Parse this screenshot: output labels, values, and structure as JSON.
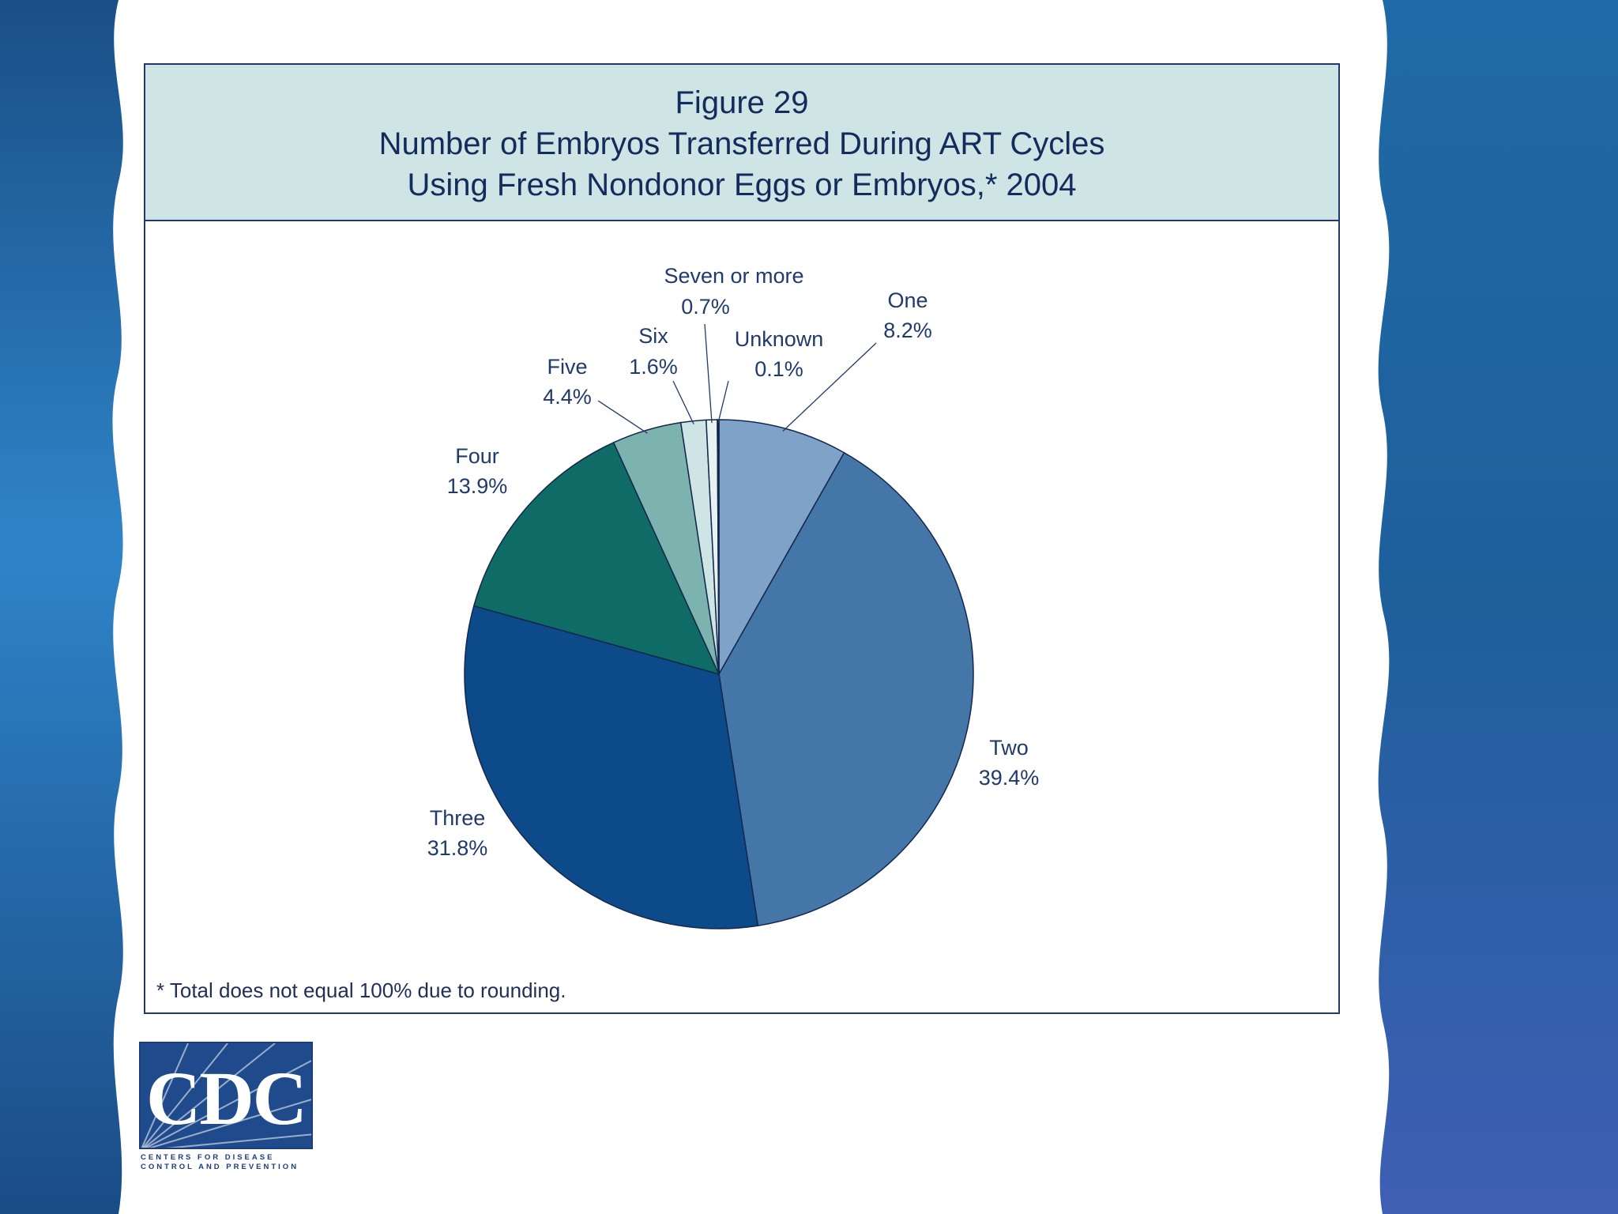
{
  "figure": {
    "title_line1": "Figure 29",
    "title_line2": "Number of Embryos Transferred During ART Cycles",
    "title_line3": "Using Fresh Nondonor Eggs or Embryos,* 2004",
    "footnote": "* Total does not equal 100% due to rounding."
  },
  "logo": {
    "text": "CDC",
    "agency": "CENTERS FOR DISEASE\nCONTROL AND PREVENTION"
  },
  "colors": {
    "background_deep": "#1d5a98",
    "background_light": "#2e8ccd",
    "title_band": "#cfe4e4",
    "border": "#1f3a6b"
  },
  "chart_data": {
    "type": "pie",
    "title": "Number of Embryos Transferred During ART Cycles Using Fresh Nondonor Eggs or Embryos,* 2004",
    "start": "12 o'clock",
    "direction": "clockwise",
    "slices": [
      {
        "name": "One",
        "value": 8.2,
        "value_label": "8.2%",
        "color": "#7fa3c8"
      },
      {
        "name": "Two",
        "value": 39.4,
        "value_label": "39.4%",
        "color": "#4477a8"
      },
      {
        "name": "Three",
        "value": 31.8,
        "value_label": "31.8%",
        "color": "#0d4a8a"
      },
      {
        "name": "Four",
        "value": 13.9,
        "value_label": "13.9%",
        "color": "#0f6b66"
      },
      {
        "name": "Five",
        "value": 4.4,
        "value_label": "4.4%",
        "color": "#7db3ae"
      },
      {
        "name": "Six",
        "value": 1.6,
        "value_label": "1.6%",
        "color": "#cfe4e4"
      },
      {
        "name": "Seven or more",
        "value": 0.7,
        "value_label": "0.7%",
        "color": "#e8f2f2"
      },
      {
        "name": "Unknown",
        "value": 0.1,
        "value_label": "0.1%",
        "color": "#0a0f2a"
      }
    ]
  }
}
